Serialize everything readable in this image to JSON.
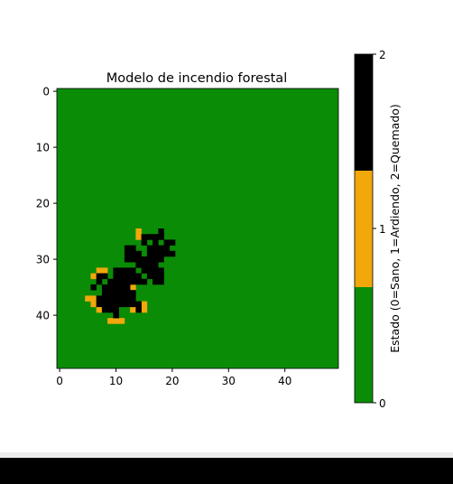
{
  "chart_data": {
    "type": "heatmap",
    "title": "Modelo de incendio forestal",
    "xlabel": "",
    "ylabel": "",
    "grid_size": [
      50,
      50
    ],
    "x_ticks": [
      "0",
      "10",
      "20",
      "30",
      "40"
    ],
    "y_ticks": [
      "0",
      "10",
      "20",
      "30",
      "40"
    ],
    "colorbar": {
      "label": "Estado (0=Sano, 1=Ardiendo, 2=Quemado)",
      "ticks": [
        "0",
        "1",
        "2"
      ],
      "range": [
        0,
        2
      ],
      "colors": [
        "#0b8c06",
        "#f2a70b",
        "#000000"
      ]
    },
    "default_value": 0,
    "burning_cells": [
      [
        25,
        14
      ],
      [
        26,
        14
      ],
      [
        32,
        7
      ],
      [
        32,
        8
      ],
      [
        33,
        6
      ],
      [
        35,
        13
      ],
      [
        37,
        5
      ],
      [
        37,
        6
      ],
      [
        38,
        6
      ],
      [
        38,
        15
      ],
      [
        39,
        7
      ],
      [
        39,
        13
      ],
      [
        39,
        15
      ],
      [
        41,
        9
      ],
      [
        41,
        10
      ],
      [
        41,
        11
      ]
    ],
    "burned_cells": [
      [
        25,
        18
      ],
      [
        26,
        15
      ],
      [
        26,
        16
      ],
      [
        26,
        17
      ],
      [
        26,
        18
      ],
      [
        27,
        15
      ],
      [
        27,
        17
      ],
      [
        27,
        19
      ],
      [
        27,
        20
      ],
      [
        28,
        12
      ],
      [
        28,
        13
      ],
      [
        28,
        16
      ],
      [
        28,
        17
      ],
      [
        28,
        18
      ],
      [
        28,
        19
      ],
      [
        29,
        12
      ],
      [
        29,
        13
      ],
      [
        29,
        14
      ],
      [
        29,
        16
      ],
      [
        29,
        17
      ],
      [
        29,
        18
      ],
      [
        29,
        19
      ],
      [
        29,
        20
      ],
      [
        30,
        12
      ],
      [
        30,
        13
      ],
      [
        30,
        14
      ],
      [
        30,
        15
      ],
      [
        30,
        16
      ],
      [
        30,
        17
      ],
      [
        30,
        18
      ],
      [
        31,
        14
      ],
      [
        31,
        15
      ],
      [
        31,
        16
      ],
      [
        31,
        17
      ],
      [
        32,
        10
      ],
      [
        32,
        11
      ],
      [
        32,
        12
      ],
      [
        32,
        13
      ],
      [
        32,
        15
      ],
      [
        32,
        16
      ],
      [
        32,
        17
      ],
      [
        32,
        18
      ],
      [
        33,
        7
      ],
      [
        33,
        8
      ],
      [
        33,
        10
      ],
      [
        33,
        11
      ],
      [
        33,
        12
      ],
      [
        33,
        13
      ],
      [
        33,
        14
      ],
      [
        33,
        16
      ],
      [
        33,
        17
      ],
      [
        33,
        18
      ],
      [
        34,
        7
      ],
      [
        34,
        9
      ],
      [
        34,
        10
      ],
      [
        34,
        11
      ],
      [
        34,
        12
      ],
      [
        34,
        13
      ],
      [
        34,
        14
      ],
      [
        34,
        15
      ],
      [
        34,
        17
      ],
      [
        34,
        18
      ],
      [
        35,
        6
      ],
      [
        35,
        8
      ],
      [
        35,
        9
      ],
      [
        35,
        10
      ],
      [
        35,
        11
      ],
      [
        35,
        12
      ],
      [
        36,
        8
      ],
      [
        36,
        9
      ],
      [
        36,
        10
      ],
      [
        36,
        11
      ],
      [
        36,
        12
      ],
      [
        36,
        13
      ],
      [
        37,
        7
      ],
      [
        37,
        8
      ],
      [
        37,
        9
      ],
      [
        37,
        10
      ],
      [
        37,
        11
      ],
      [
        37,
        12
      ],
      [
        37,
        13
      ],
      [
        38,
        7
      ],
      [
        38,
        8
      ],
      [
        38,
        9
      ],
      [
        38,
        10
      ],
      [
        38,
        11
      ],
      [
        38,
        12
      ],
      [
        38,
        13
      ],
      [
        38,
        14
      ],
      [
        39,
        8
      ],
      [
        39,
        9
      ],
      [
        39,
        10
      ],
      [
        39,
        14
      ],
      [
        40,
        10
      ]
    ]
  }
}
